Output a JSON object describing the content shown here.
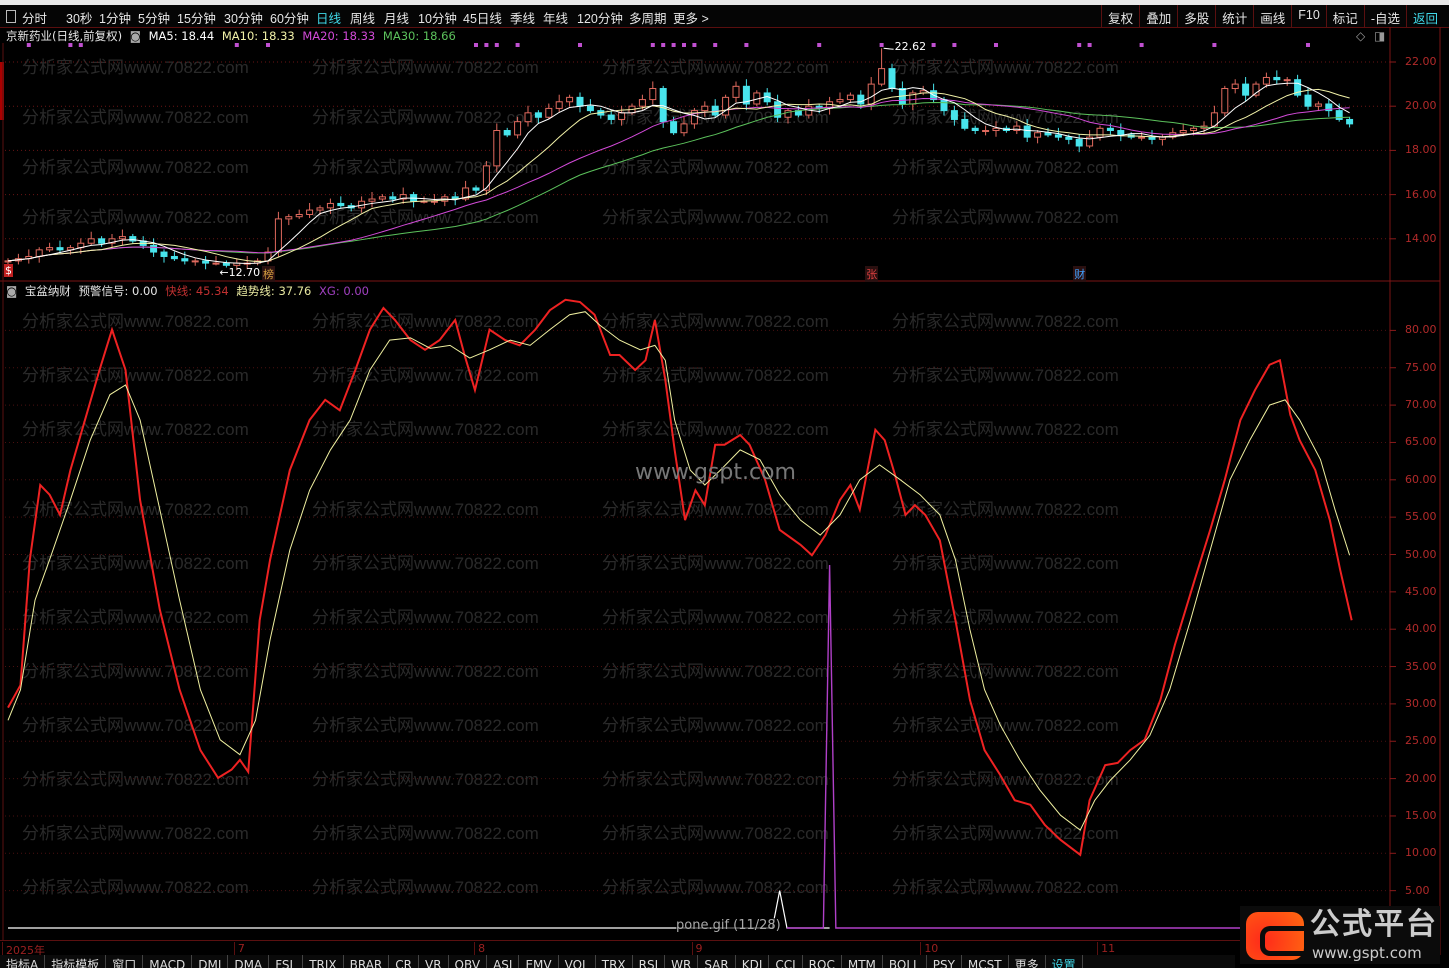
{
  "toolbar": {
    "left_items": [
      "分时",
      "30秒",
      "1分钟",
      "5分钟",
      "15分钟",
      "30分钟",
      "60分钟",
      "日线",
      "周线",
      "月线",
      "10分钟",
      "45日线",
      "季线",
      "年线",
      "120分钟",
      "多周期",
      "更多 >"
    ],
    "active_item": "日线",
    "right_items": [
      "复权",
      "叠加",
      "多股",
      "统计",
      "画线",
      "F10",
      "标记",
      "-自选",
      "返回"
    ],
    "right_active": "返回"
  },
  "price_legend": {
    "stock_name": "京新药业(日线,前复权)",
    "ma5": "MA5: 18.44",
    "ma10": "MA10: 18.33",
    "ma20": "MA20: 18.33",
    "ma30": "MA30: 18.66"
  },
  "indicator_legend": {
    "name": "宝盆纳财",
    "signal": "预警信号: 0.00",
    "fast_label": "快线:",
    "fast_value": "45.34",
    "trend_label": "趋势线:",
    "trend_value": "37.76",
    "xg_label": "XG:",
    "xg_value": "0.00"
  },
  "colors": {
    "up": "#e06a5e",
    "down": "#48e4ec",
    "ma5": "#ffffff",
    "ma10": "#f2f2a8",
    "ma20": "#d24ad8",
    "ma30": "#5cc25c",
    "fast": "#ee2222",
    "trend": "#f0f0a0",
    "xg": "#b040c8",
    "axis": "#b22a2a"
  },
  "chart_data": [
    {
      "type": "candlestick",
      "title": "京新药业(日线,前复权)",
      "ylim": [
        12.5,
        22.8
      ],
      "y_ticks": [
        "22.00",
        "20.00",
        "18.00",
        "16.00",
        "14.00"
      ],
      "closes": [
        13.0,
        13.1,
        13.2,
        13.5,
        13.6,
        13.5,
        13.6,
        13.8,
        14.0,
        13.8,
        14.0,
        14.1,
        13.9,
        13.7,
        13.4,
        13.2,
        13.1,
        13.0,
        13.0,
        12.9,
        12.9,
        12.8,
        12.9,
        12.9,
        13.0,
        13.4,
        14.9,
        15.0,
        15.1,
        15.3,
        15.4,
        15.6,
        15.5,
        15.4,
        15.7,
        15.8,
        15.9,
        15.8,
        16.0,
        15.7,
        15.7,
        15.7,
        15.9,
        15.8,
        16.3,
        16.2,
        17.3,
        18.9,
        18.7,
        19.3,
        19.7,
        19.5,
        19.9,
        20.2,
        20.4,
        20.0,
        19.8,
        19.6,
        19.4,
        19.7,
        20.0,
        20.3,
        20.8,
        19.3,
        18.8,
        19.2,
        19.8,
        20.0,
        19.6,
        20.4,
        20.9,
        20.1,
        20.6,
        20.2,
        19.5,
        19.8,
        19.6,
        20.0,
        19.9,
        20.2,
        20.3,
        20.5,
        20.1,
        21.0,
        21.7,
        20.8,
        20.1,
        20.6,
        20.7,
        20.3,
        19.8,
        19.4,
        19.0,
        18.9,
        18.9,
        19.0,
        18.9,
        19.1,
        18.6,
        18.8,
        18.7,
        18.6,
        18.5,
        18.2,
        18.6,
        19.0,
        18.9,
        18.7,
        18.6,
        18.6,
        18.5,
        18.6,
        18.8,
        18.9,
        19.0,
        19.1,
        19.7,
        20.8,
        21.0,
        20.5,
        21.0,
        21.3,
        21.2,
        21.2,
        20.5,
        20.0,
        20.1,
        19.8,
        19.4,
        19.2
      ],
      "high_label": {
        "bar": 84,
        "value": 22.62,
        "text": "22.62"
      },
      "low_label": {
        "bar": 21,
        "value": 12.7,
        "text": "←12.70"
      },
      "signal_dot_bars": [
        2,
        6,
        7,
        22,
        25,
        45,
        46,
        47,
        49,
        55,
        62,
        63,
        64,
        65,
        66,
        68,
        71,
        78,
        84,
        89,
        91,
        95,
        103,
        104,
        109,
        116,
        125
      ],
      "event_markers": [
        {
          "bar": 25,
          "text": "榜",
          "color": "#d8a040"
        },
        {
          "bar": 83,
          "text": "张",
          "color": "#e04040"
        },
        {
          "bar": 103,
          "text": "财",
          "color": "#40a0ff"
        }
      ]
    },
    {
      "type": "line",
      "title": "宝盆纳财",
      "ylim": [
        0,
        85
      ],
      "y_ticks": [
        "80.00",
        "75.00",
        "70.00",
        "65.00",
        "60.00",
        "55.00",
        "50.00",
        "45.00",
        "40.00",
        "35.00",
        "30.00",
        "25.00",
        "20.00",
        "15.00",
        "10.00",
        "5.00"
      ],
      "series": [
        {
          "name": "快线",
          "points": [
            [
              0,
              29.5
            ],
            [
              1.2,
              32.5
            ],
            [
              2.1,
              49.3
            ],
            [
              3.1,
              59.3
            ],
            [
              4,
              58
            ],
            [
              5,
              55.3
            ],
            [
              6,
              61.3
            ],
            [
              7.4,
              68
            ],
            [
              8.8,
              74.7
            ],
            [
              10,
              80.1
            ],
            [
              11.3,
              74.7
            ],
            [
              12.7,
              57.3
            ],
            [
              14.6,
              42.6
            ],
            [
              16.5,
              31.9
            ],
            [
              18.5,
              23.8
            ],
            [
              20.2,
              20.1
            ],
            [
              21.5,
              21.2
            ],
            [
              22.3,
              22.5
            ],
            [
              23.1,
              20.9
            ],
            [
              24.2,
              41.2
            ],
            [
              25.2,
              49.3
            ],
            [
              27.1,
              61.3
            ],
            [
              29,
              68
            ],
            [
              30.5,
              70.7
            ],
            [
              31.9,
              69.3
            ],
            [
              33.4,
              74.7
            ],
            [
              34.8,
              80.1
            ],
            [
              36.1,
              83
            ],
            [
              37.2,
              81.4
            ],
            [
              38.7,
              78.7
            ],
            [
              40.1,
              77.4
            ],
            [
              41.5,
              78.7
            ],
            [
              43,
              81.4
            ],
            [
              43.9,
              76.7
            ],
            [
              44.9,
              72
            ],
            [
              46.3,
              80.1
            ],
            [
              47.8,
              78.7
            ],
            [
              49.2,
              78
            ],
            [
              50.7,
              80.1
            ],
            [
              52.1,
              82.7
            ],
            [
              53.6,
              84.1
            ],
            [
              55,
              83.8
            ],
            [
              56.4,
              82.1
            ],
            [
              57.9,
              76.7
            ],
            [
              58.8,
              76.7
            ],
            [
              60.3,
              74.7
            ],
            [
              61.3,
              76
            ],
            [
              62.2,
              81.4
            ],
            [
              63.2,
              73.4
            ],
            [
              64.1,
              64
            ],
            [
              65.1,
              54.6
            ],
            [
              66.1,
              58.6
            ],
            [
              67,
              56.6
            ],
            [
              68,
              64.7
            ],
            [
              68.9,
              64.7
            ],
            [
              70.4,
              66
            ],
            [
              71.3,
              64.7
            ],
            [
              72.8,
              60
            ],
            [
              74.2,
              53.3
            ],
            [
              76.2,
              51.3
            ],
            [
              77.3,
              49.9
            ],
            [
              78.6,
              52.6
            ],
            [
              80,
              57.3
            ],
            [
              81,
              59.3
            ],
            [
              81.9,
              56
            ],
            [
              83.4,
              66.7
            ],
            [
              84.3,
              65.3
            ],
            [
              85.3,
              60.6
            ],
            [
              86.3,
              55.3
            ],
            [
              87.2,
              56.6
            ],
            [
              88.2,
              55.3
            ],
            [
              89.6,
              51.9
            ],
            [
              91.1,
              41.2
            ],
            [
              92.5,
              30.5
            ],
            [
              93.9,
              23.8
            ],
            [
              95.4,
              20.5
            ],
            [
              96.8,
              17.1
            ],
            [
              98.3,
              16.5
            ],
            [
              99.7,
              13.8
            ],
            [
              101.2,
              11.8
            ],
            [
              103.1,
              9.8
            ],
            [
              104,
              17.1
            ],
            [
              105.5,
              21.8
            ],
            [
              106.7,
              22.1
            ],
            [
              107.9,
              23.8
            ],
            [
              109.3,
              25.2
            ],
            [
              110.8,
              30.5
            ],
            [
              112.2,
              37.9
            ],
            [
              114.1,
              46.6
            ],
            [
              115.6,
              53.3
            ],
            [
              117,
              60
            ],
            [
              118.5,
              68
            ],
            [
              119.9,
              72
            ],
            [
              121.3,
              75.4
            ],
            [
              122.3,
              76
            ],
            [
              123.3,
              68.7
            ],
            [
              124.2,
              65.3
            ],
            [
              125.7,
              61.3
            ],
            [
              127.1,
              54.6
            ],
            [
              128.1,
              47.9
            ],
            [
              129.2,
              41.2
            ]
          ]
        },
        {
          "name": "趋势线",
          "points": [
            [
              0,
              27.8
            ],
            [
              1.2,
              31.9
            ],
            [
              2.6,
              43.9
            ],
            [
              4,
              49.3
            ],
            [
              6,
              57.3
            ],
            [
              7.9,
              65.3
            ],
            [
              9.8,
              71.4
            ],
            [
              11.3,
              72.7
            ],
            [
              12.7,
              68
            ],
            [
              14.6,
              56
            ],
            [
              16.5,
              43.9
            ],
            [
              18.5,
              31.9
            ],
            [
              20.4,
              25.2
            ],
            [
              22.3,
              23.2
            ],
            [
              23.8,
              27.8
            ],
            [
              25.2,
              38.6
            ],
            [
              27.1,
              50.6
            ],
            [
              29,
              58.6
            ],
            [
              31,
              64
            ],
            [
              32.9,
              68
            ],
            [
              34.8,
              74.7
            ],
            [
              36.7,
              78.7
            ],
            [
              38.7,
              79
            ],
            [
              40.6,
              77.6
            ],
            [
              42.5,
              78
            ],
            [
              44.4,
              76.3
            ],
            [
              46.3,
              77.4
            ],
            [
              48.3,
              78.7
            ],
            [
              50.2,
              78
            ],
            [
              52.1,
              80.1
            ],
            [
              54,
              82.1
            ],
            [
              55.5,
              82.5
            ],
            [
              56.9,
              80.7
            ],
            [
              58.8,
              78.7
            ],
            [
              60.8,
              77.4
            ],
            [
              62.2,
              78
            ],
            [
              63.2,
              76
            ],
            [
              64.1,
              68
            ],
            [
              65.6,
              61.3
            ],
            [
              67,
              59.3
            ],
            [
              68.5,
              61.3
            ],
            [
              70.4,
              64
            ],
            [
              72.3,
              62.7
            ],
            [
              74.2,
              58
            ],
            [
              76.2,
              54.6
            ],
            [
              78.1,
              52.6
            ],
            [
              80,
              55.3
            ],
            [
              81.9,
              60
            ],
            [
              83.8,
              62
            ],
            [
              85.8,
              60
            ],
            [
              87.7,
              58
            ],
            [
              89.6,
              55.3
            ],
            [
              91.1,
              49.3
            ],
            [
              92.5,
              39.9
            ],
            [
              93.9,
              31.9
            ],
            [
              95.4,
              27.2
            ],
            [
              97.3,
              22.5
            ],
            [
              99.2,
              18.5
            ],
            [
              101.2,
              15.1
            ],
            [
              103.1,
              13.1
            ],
            [
              104.5,
              17.1
            ],
            [
              106,
              19.8
            ],
            [
              107.9,
              22.5
            ],
            [
              109.8,
              25.8
            ],
            [
              111.7,
              31.9
            ],
            [
              113.7,
              41.2
            ],
            [
              115.6,
              50.6
            ],
            [
              117.5,
              60
            ],
            [
              119.4,
              65.3
            ],
            [
              121.3,
              70
            ],
            [
              122.8,
              70.7
            ],
            [
              124.2,
              68
            ],
            [
              126.2,
              62.7
            ],
            [
              127.6,
              56
            ],
            [
              129,
              49.9
            ]
          ]
        },
        {
          "name": "预警信号",
          "points": [
            [
              0,
              0
            ],
            [
              73.5,
              0
            ],
            [
              74.2,
              5
            ],
            [
              74.9,
              0
            ],
            [
              79,
              0
            ]
          ]
        },
        {
          "name": "XG",
          "points": [
            [
              74.9,
              0
            ],
            [
              78.4,
              0
            ],
            [
              79,
              48.6
            ],
            [
              79.6,
              0
            ],
            [
              119,
              0
            ]
          ]
        }
      ]
    }
  ],
  "date_axis": [
    {
      "bar": 0,
      "label": "2025年"
    },
    {
      "bar": 22.3,
      "label": "7"
    },
    {
      "bar": 45.4,
      "label": "8"
    },
    {
      "bar": 66.3,
      "label": "9"
    },
    {
      "bar": 88.3,
      "label": "10"
    },
    {
      "bar": 105.3,
      "label": "11"
    }
  ],
  "watermark": "分析家公式网www.70822.com",
  "center_watermark": "www.gspt.com",
  "bottom_tabs": [
    "指标A",
    "指标模板",
    "窗口",
    "MACD",
    "DMI",
    "DMA",
    "FSL",
    "TRIX",
    "BRAR",
    "CR",
    "VR",
    "OBV",
    "ASI",
    "EMV",
    "VOL",
    "TRX",
    "RSI",
    "WR",
    "SAR",
    "KDJ",
    "CCI",
    "ROC",
    "MTM",
    "BOLL",
    "PSY",
    "MCST",
    "更多",
    "设置"
  ],
  "tooltip": "pone.gif (11/28)",
  "logo": {
    "title": "公式平台",
    "url": "www.gspt.com"
  }
}
